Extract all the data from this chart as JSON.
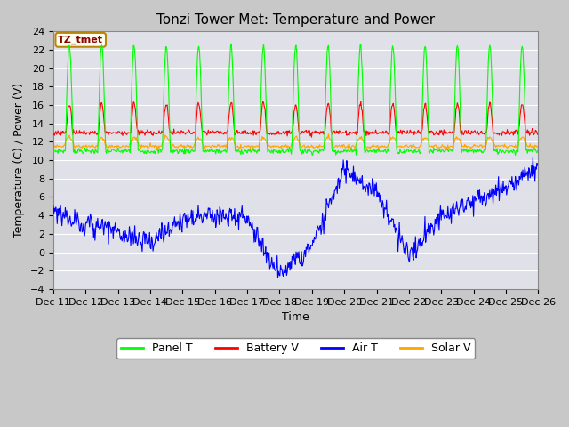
{
  "title": "Tonzi Tower Met: Temperature and Power",
  "xlabel": "Time",
  "ylabel": "Temperature (C) / Power (V)",
  "annotation": "TZ_tmet",
  "ylim": [
    -4,
    24
  ],
  "yticks": [
    -4,
    -2,
    0,
    2,
    4,
    6,
    8,
    10,
    12,
    14,
    16,
    18,
    20,
    22,
    24
  ],
  "xtick_labels": [
    "Dec 11",
    "Dec 12",
    "Dec 13",
    "Dec 14",
    "Dec 15",
    "Dec 16",
    "Dec 17",
    "Dec 18",
    "Dec 19",
    "Dec 20",
    "Dec 21",
    "Dec 22",
    "Dec 23",
    "Dec 24",
    "Dec 25",
    "Dec 26"
  ],
  "panel_T_color": "#00FF00",
  "battery_V_color": "#FF0000",
  "air_T_color": "#0000FF",
  "solar_V_color": "#FFA500",
  "legend_labels": [
    "Panel T",
    "Battery V",
    "Air T",
    "Solar V"
  ],
  "legend_colors": [
    "#00FF00",
    "#FF0000",
    "#0000FF",
    "#FFA500"
  ],
  "title_fontsize": 11,
  "label_fontsize": 9,
  "tick_fontsize": 8
}
